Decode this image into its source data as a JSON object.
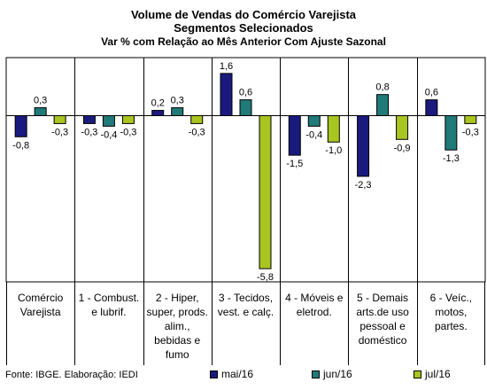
{
  "chart_data": {
    "type": "bar",
    "title": "Volume de Vendas do Comércio Varejista",
    "subtitle": "Segmentos Selecionados",
    "subtitle2": "Var % com Relação ao Mês Anterior Com Ajuste Sazonal",
    "categories": [
      "Comércio Varejista",
      "1 - Combust. e lubrif.",
      "2 - Hiper, super, prods. alim., bebidas e fumo",
      "3 - Tecidos, vest. e calç.",
      "4 - Móveis e eletrod.",
      "5 - Demais arts.de uso pessoal e doméstico",
      "6 - Veíc., motos, partes."
    ],
    "series": [
      {
        "name": "mai/16",
        "color": "#1a1a7e",
        "values": [
          -0.8,
          -0.3,
          0.2,
          1.6,
          -1.5,
          -2.3,
          0.6
        ],
        "labels": [
          "-0,8",
          "-0,3",
          "0,2",
          "1,6",
          "-1,5",
          "-2,3",
          "0,6"
        ]
      },
      {
        "name": "jun/16",
        "color": "#1f7a78",
        "values": [
          0.3,
          -0.4,
          0.3,
          0.6,
          -0.4,
          0.8,
          -1.3
        ],
        "labels": [
          "0,3",
          "-0,4",
          "0,3",
          "0,6",
          "-0,4",
          "0,8",
          "-1,3"
        ]
      },
      {
        "name": "jul/16",
        "color": "#a8c520",
        "values": [
          -0.3,
          -0.3,
          -0.3,
          -5.8,
          -1.0,
          -0.9,
          -0.3
        ],
        "labels": [
          "-0,3",
          "-0,3",
          "-0,3",
          "-5,8",
          "-1,0",
          "-0,9",
          "-0,3"
        ]
      }
    ],
    "ylim": [
      -6.3,
      2.2
    ],
    "legend_position": "bottom-right",
    "grid": false
  },
  "footer": {
    "source": "Fonte: IBGE. Elaboração: IEDI"
  }
}
